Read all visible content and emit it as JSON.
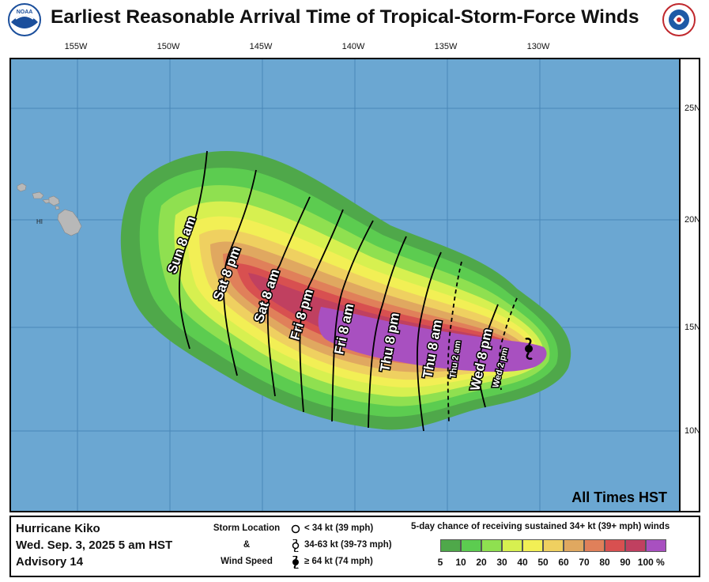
{
  "title": "Earliest Reasonable Arrival Time of Tropical-Storm-Force Winds",
  "logos": {
    "left": "noaa-logo",
    "right": "nws-logo"
  },
  "longitudes": [
    "155W",
    "150W",
    "145W",
    "140W",
    "135W",
    "130W"
  ],
  "latitudes": [
    "25N",
    "20N",
    "15N",
    "10N"
  ],
  "island_label": "HI",
  "time_contours": [
    {
      "day": "Wed",
      "time": "2 pm"
    },
    {
      "day": "Wed",
      "time": "8 pm"
    },
    {
      "day": "Thu",
      "time": "2 am"
    },
    {
      "day": "Thu",
      "time": "8 am"
    },
    {
      "day": "Thu",
      "time": "8 pm"
    },
    {
      "day": "Fri",
      "time": "8 am"
    },
    {
      "day": "Fri",
      "time": "8 pm"
    },
    {
      "day": "Sat",
      "time": "8 am"
    },
    {
      "day": "Sat",
      "time": "8 pm"
    },
    {
      "day": "Sun",
      "time": "8 am"
    }
  ],
  "all_times_label": "All Times HST",
  "storm": {
    "name": "Hurricane Kiko",
    "date": "Wed. Sep. 3, 2025  5 am HST",
    "advisory": "Advisory 14"
  },
  "storm_location_legend": {
    "line1": "Storm Location",
    "line2": "&",
    "line3": "Wind Speed",
    "items": [
      "< 34 kt (39 mph)",
      "34-63 kt (39-73 mph)",
      "≥ 64 kt (74 mph)"
    ]
  },
  "probability_legend": {
    "title": "5-day chance of receiving sustained 34+ kt (39+ mph) winds",
    "ticks": [
      "5",
      "10",
      "20",
      "30",
      "40",
      "50",
      "60",
      "70",
      "80",
      "90",
      "100 %"
    ],
    "colors": [
      "#4fa84a",
      "#5ccc50",
      "#8fe050",
      "#d7f050",
      "#f2ef55",
      "#efd060",
      "#e0a860",
      "#e0805a",
      "#d85050",
      "#c04060",
      "#a850c0"
    ]
  },
  "colors": {
    "ocean": "#6ba7d2",
    "land": "#b8b8b8",
    "contour": "#000000"
  }
}
